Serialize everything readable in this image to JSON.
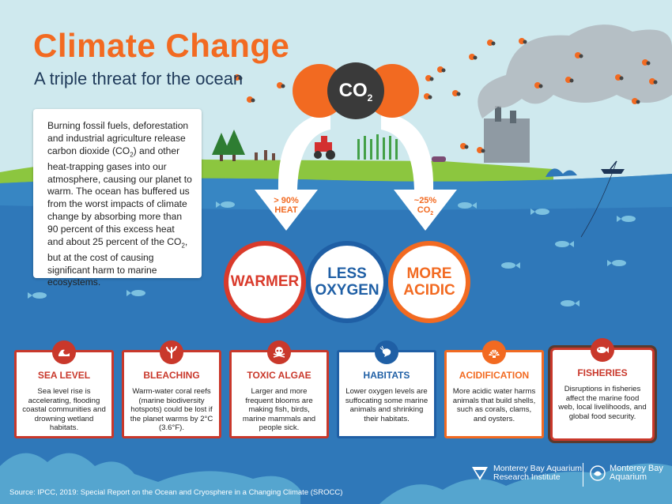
{
  "header": {
    "title": "Climate Change",
    "subtitle": "A triple threat for the ocean"
  },
  "co2_molecule": {
    "label": "CO",
    "subscript": "2"
  },
  "intro": {
    "text_1": "Burning fossil fuels, deforestation and industrial agriculture release carbon dioxide (CO",
    "text_2": ") and other heat-trapping gases into our atmosphere, causing our planet to warm. The ocean has buffered us from the worst impacts of climate change by absorbing more than 90 percent of this excess heat and about 25 percent of the CO",
    "text_3": ", but at the cost of causing significant harm to marine ecosystems.",
    "sub": "2"
  },
  "arrows": {
    "left_line1": "> 90%",
    "left_line2": "HEAT",
    "right_line1": "~25%",
    "right_line2": "CO",
    "right_sub": "2"
  },
  "threats": [
    {
      "line1": "WARMER",
      "line2": ""
    },
    {
      "line1": "LESS",
      "line2": "OXYGEN"
    },
    {
      "line1": "MORE",
      "line2": "ACIDIC"
    }
  ],
  "cards": [
    {
      "title": "SEA LEVEL",
      "body": "Sea level rise is accelerating, flooding coastal communities and drowning wetland habitats.",
      "color": "#c9382b",
      "icon": "wave-icon"
    },
    {
      "title": "BLEACHING",
      "body": "Warm-water coral reefs (marine biodiversity hotspots) could be lost if the planet warms by 2°C (3.6°F).",
      "color": "#c9382b",
      "icon": "coral-icon"
    },
    {
      "title": "TOXIC ALGAE",
      "body": "Larger and more frequent blooms are making fish, birds, marine mammals and people sick.",
      "color": "#c9382b",
      "icon": "skull-icon"
    },
    {
      "title": "HABITATS",
      "body": "Lower oxygen levels are suffocating some marine animals and shrinking their habitats.",
      "color": "#1f5fa5",
      "icon": "shrimp-icon"
    },
    {
      "title": "ACIDIFICATION",
      "body": "More acidic water harms animals that build shells, such as corals, clams, and oysters.",
      "color": "#f26a21",
      "icon": "shell-icon"
    },
    {
      "title": "FISHERIES",
      "body": "Disruptions in fisheries affect the marine food web, local livelihoods, and global food security.",
      "color": "#c9382b",
      "icon": "fish-icon"
    }
  ],
  "footer": {
    "source": "Source: IPCC, 2019: Special Report on the Ocean and Cryosphere in a Changing Climate (SROCC)",
    "logo1_line1": "Monterey Bay Aquarium",
    "logo1_line2": "Research Institute",
    "logo2_line1": "Monterey Bay",
    "logo2_line2": "Aquarium"
  },
  "colors": {
    "orange": "#f26a21",
    "red": "#d93a2b",
    "blue": "#1f5fa5",
    "ocean": "#2f78b9",
    "sky": "#cfe9ee"
  }
}
